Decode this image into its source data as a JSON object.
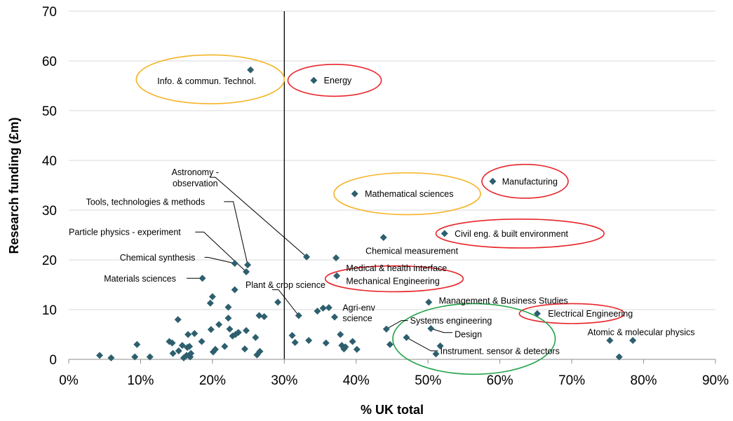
{
  "chart_data": {
    "type": "scatter",
    "title": "",
    "xlabel": "% UK total",
    "ylabel": "Research funding (£m)",
    "xlim": [
      0,
      90
    ],
    "ylim": [
      0,
      70
    ],
    "x_format": "percent",
    "x_ticks": [
      0,
      10,
      20,
      30,
      40,
      50,
      60,
      70,
      80,
      90
    ],
    "y_ticks": [
      0,
      10,
      20,
      30,
      40,
      50,
      60,
      70
    ],
    "grid": "horizontal",
    "legend": "none",
    "marker_color": "#2e5f6e",
    "reference_line_x": 30,
    "points": [
      {
        "x": 25.3,
        "y": 58.2,
        "label": "Info. & commun. Technol."
      },
      {
        "x": 34.1,
        "y": 56.1,
        "label": "Energy"
      },
      {
        "x": 59.0,
        "y": 35.8,
        "label": "Manufacturing"
      },
      {
        "x": 39.8,
        "y": 33.3,
        "label": "Mathematical sciences"
      },
      {
        "x": 52.3,
        "y": 25.3,
        "label": "Civil eng. & built environment"
      },
      {
        "x": 43.8,
        "y": 24.5,
        "label": "Chemical measurement"
      },
      {
        "x": 33.1,
        "y": 20.6,
        "label": "Astronomy - observation"
      },
      {
        "x": 37.2,
        "y": 20.4,
        "label": "Medical & health interface"
      },
      {
        "x": 23.1,
        "y": 19.3,
        "label": "Chemical synthesis"
      },
      {
        "x": 24.9,
        "y": 19.0,
        "label": "Tools, technologies & methods"
      },
      {
        "x": 24.7,
        "y": 17.6,
        "label": "Particle physics - experiment"
      },
      {
        "x": 37.3,
        "y": 16.8,
        "label": "Mechanical Engineering"
      },
      {
        "x": 18.6,
        "y": 16.3,
        "label": "Materials sciences"
      },
      {
        "x": 50.1,
        "y": 11.5,
        "label": "Management & Business Studies"
      },
      {
        "x": 65.2,
        "y": 9.2,
        "label": "Electrical Engineering"
      },
      {
        "x": 32.0,
        "y": 8.8,
        "label": "Plant & crop science"
      },
      {
        "x": 37.0,
        "y": 8.5,
        "label": "Agri-env science"
      },
      {
        "x": 44.2,
        "y": 6.1,
        "label": "Systems engineering"
      },
      {
        "x": 50.4,
        "y": 6.2,
        "label": "Design"
      },
      {
        "x": 47.0,
        "y": 4.4,
        "label": "Instrument. sensor & detectors"
      },
      {
        "x": 78.5,
        "y": 3.8,
        "label": "Atomic & molecular physics"
      },
      {
        "x": 75.3,
        "y": 3.8
      },
      {
        "x": 76.6,
        "y": 0.5
      },
      {
        "x": 4.3,
        "y": 0.8
      },
      {
        "x": 5.9,
        "y": 0.3
      },
      {
        "x": 9.2,
        "y": 0.5
      },
      {
        "x": 9.5,
        "y": 3.0
      },
      {
        "x": 11.3,
        "y": 0.5
      },
      {
        "x": 14.0,
        "y": 3.6
      },
      {
        "x": 14.4,
        "y": 3.3
      },
      {
        "x": 14.5,
        "y": 1.2
      },
      {
        "x": 15.2,
        "y": 8.0
      },
      {
        "x": 15.3,
        "y": 1.7
      },
      {
        "x": 15.8,
        "y": 2.8
      },
      {
        "x": 16.0,
        "y": 0.3
      },
      {
        "x": 16.4,
        "y": 0.8
      },
      {
        "x": 16.5,
        "y": 2.4
      },
      {
        "x": 16.6,
        "y": 5.0
      },
      {
        "x": 16.8,
        "y": 2.6
      },
      {
        "x": 16.9,
        "y": 0.5
      },
      {
        "x": 17.0,
        "y": 1.2
      },
      {
        "x": 17.5,
        "y": 5.2
      },
      {
        "x": 18.5,
        "y": 3.6
      },
      {
        "x": 19.7,
        "y": 11.3
      },
      {
        "x": 19.8,
        "y": 6.0
      },
      {
        "x": 20.0,
        "y": 12.6
      },
      {
        "x": 20.1,
        "y": 1.5
      },
      {
        "x": 20.4,
        "y": 2.0
      },
      {
        "x": 20.9,
        "y": 7.0
      },
      {
        "x": 21.7,
        "y": 2.6
      },
      {
        "x": 22.2,
        "y": 10.5
      },
      {
        "x": 22.2,
        "y": 8.3
      },
      {
        "x": 22.4,
        "y": 6.1
      },
      {
        "x": 22.8,
        "y": 4.7
      },
      {
        "x": 23.1,
        "y": 14.0
      },
      {
        "x": 23.2,
        "y": 5.0
      },
      {
        "x": 23.6,
        "y": 5.4
      },
      {
        "x": 24.5,
        "y": 2.1
      },
      {
        "x": 24.7,
        "y": 5.8
      },
      {
        "x": 26.0,
        "y": 4.4
      },
      {
        "x": 26.2,
        "y": 0.9
      },
      {
        "x": 26.5,
        "y": 8.8
      },
      {
        "x": 26.6,
        "y": 1.6
      },
      {
        "x": 27.2,
        "y": 8.6
      },
      {
        "x": 29.1,
        "y": 11.5
      },
      {
        "x": 31.1,
        "y": 4.8
      },
      {
        "x": 31.5,
        "y": 3.4
      },
      {
        "x": 33.4,
        "y": 3.8
      },
      {
        "x": 34.6,
        "y": 9.7
      },
      {
        "x": 35.4,
        "y": 10.3
      },
      {
        "x": 35.8,
        "y": 3.3
      },
      {
        "x": 36.2,
        "y": 10.4
      },
      {
        "x": 37.8,
        "y": 5.0
      },
      {
        "x": 38.0,
        "y": 2.8
      },
      {
        "x": 38.3,
        "y": 2.1
      },
      {
        "x": 38.5,
        "y": 2.5
      },
      {
        "x": 39.5,
        "y": 3.6
      },
      {
        "x": 40.1,
        "y": 2.0
      },
      {
        "x": 44.7,
        "y": 3.0
      },
      {
        "x": 51.1,
        "y": 1.1
      },
      {
        "x": 51.7,
        "y": 2.7
      }
    ],
    "label_layout": [
      {
        "label": "Info. & commun. Technol.",
        "tx": 19.2,
        "ty": 56.0,
        "anchor": "middle",
        "leader": false
      },
      {
        "label": "Energy",
        "tx": 35.5,
        "ty": 56.1,
        "anchor": "start",
        "leader": false
      },
      {
        "label": "Manufacturing",
        "tx": 60.3,
        "ty": 35.8,
        "anchor": "start",
        "leader": false
      },
      {
        "label": "Mathematical sciences",
        "tx": 41.2,
        "ty": 33.3,
        "anchor": "start",
        "leader": false
      },
      {
        "label": "Civil eng. & built environment",
        "tx": 53.7,
        "ty": 25.3,
        "anchor": "start",
        "leader": false
      },
      {
        "label": "Chemical measurement",
        "tx": 41.3,
        "ty": 21.8,
        "anchor": "start",
        "leader": false
      },
      {
        "label": "Astronomy -",
        "tx": 17.6,
        "ty": 37.7,
        "anchor": "middle",
        "leader": true,
        "path": [
          [
            19.6,
            36.6
          ],
          [
            20.4,
            36.6
          ],
          [
            33.1,
            20.6
          ]
        ]
      },
      {
        "label": "observation",
        "tx": 17.6,
        "ty": 35.4,
        "anchor": "middle",
        "leader": false
      },
      {
        "label": "Tools, technologies & methods",
        "tx": 2.4,
        "ty": 31.7,
        "anchor": "start",
        "leader": true,
        "path": [
          [
            21.6,
            31.7
          ],
          [
            22.9,
            31.7
          ],
          [
            24.9,
            19.0
          ]
        ]
      },
      {
        "label": "Particle physics - experiment",
        "tx": 0,
        "ty": 25.6,
        "anchor": "start",
        "leader": true,
        "path": [
          [
            17.6,
            25.6
          ],
          [
            18.8,
            25.6
          ],
          [
            24.7,
            17.6
          ]
        ]
      },
      {
        "label": "Chemical synthesis",
        "tx": 7.1,
        "ty": 20.5,
        "anchor": "start",
        "leader": true,
        "path": [
          [
            18.9,
            20.5
          ],
          [
            19.4,
            20.5
          ],
          [
            23.1,
            19.3
          ]
        ]
      },
      {
        "label": "Medical & health interface",
        "tx": 38.6,
        "ty": 18.4,
        "anchor": "start",
        "leader": false
      },
      {
        "label": "Mechanical Engineering",
        "tx": 38.6,
        "ty": 15.8,
        "anchor": "start",
        "leader": false
      },
      {
        "label": "Materials sciences",
        "tx": 4.9,
        "ty": 16.3,
        "anchor": "start",
        "leader": true,
        "path": [
          [
            16.4,
            16.3
          ],
          [
            18.6,
            16.3
          ]
        ]
      },
      {
        "label": "Management & Business Studies",
        "tx": 51.5,
        "ty": 11.8,
        "anchor": "start",
        "leader": false
      },
      {
        "label": "Electrical Engineering",
        "tx": 66.7,
        "ty": 9.2,
        "anchor": "start",
        "leader": false
      },
      {
        "label": "Plant & crop science",
        "tx": 24.6,
        "ty": 15.0,
        "anchor": "start",
        "leader": true,
        "path": [
          [
            28.3,
            14.0
          ],
          [
            29.2,
            14.0
          ],
          [
            32.0,
            8.8
          ]
        ]
      },
      {
        "label": "Agri-env",
        "tx": 38.1,
        "ty": 10.4,
        "anchor": "start",
        "leader": false
      },
      {
        "label": "science",
        "tx": 38.1,
        "ty": 8.3,
        "anchor": "start",
        "leader": false
      },
      {
        "label": "Systems engineering",
        "tx": 47.5,
        "ty": 7.8,
        "anchor": "start",
        "leader": true,
        "path": [
          [
            47.2,
            7.8
          ],
          [
            46.3,
            7.8
          ],
          [
            44.2,
            6.1
          ]
        ]
      },
      {
        "label": "Design",
        "tx": 53.7,
        "ty": 5.1,
        "anchor": "start",
        "leader": true,
        "path": [
          [
            53.4,
            5.4
          ],
          [
            52.2,
            5.4
          ],
          [
            50.4,
            6.2
          ]
        ]
      },
      {
        "label": "Instrument. sensor & detectors",
        "tx": 51.7,
        "ty": 1.7,
        "anchor": "start",
        "leader": true,
        "path": [
          [
            51.4,
            1.7
          ],
          [
            50.4,
            1.7
          ],
          [
            47.0,
            4.4
          ]
        ]
      },
      {
        "label": "Atomic & molecular physics",
        "tx": 72.2,
        "ty": 5.5,
        "anchor": "start",
        "leader": false
      }
    ],
    "highlight_groups": [
      {
        "color": "#f5b324",
        "cx": 19.7,
        "cy": 56.3,
        "rx": 10.3,
        "ry": 4.9
      },
      {
        "color": "#e8252a",
        "cx": 37.0,
        "cy": 56.1,
        "rx": 6.5,
        "ry": 3.2
      },
      {
        "color": "#f5b324",
        "cx": 47.1,
        "cy": 33.3,
        "rx": 10.2,
        "ry": 4.2
      },
      {
        "color": "#e8252a",
        "cx": 63.5,
        "cy": 35.8,
        "rx": 6.0,
        "ry": 3.4
      },
      {
        "color": "#e8252a",
        "cx": 62.8,
        "cy": 25.3,
        "rx": 11.7,
        "ry": 2.9
      },
      {
        "color": "#e8252a",
        "cx": 45.3,
        "cy": 16.2,
        "rx": 9.6,
        "ry": 2.6
      },
      {
        "color": "#e8252a",
        "cx": 70.0,
        "cy": 9.2,
        "rx": 7.3,
        "ry": 2.0
      },
      {
        "color": "#22a24a",
        "cx": 56.4,
        "cy": 4.1,
        "rx": 11.3,
        "ry": 7.1
      }
    ]
  }
}
